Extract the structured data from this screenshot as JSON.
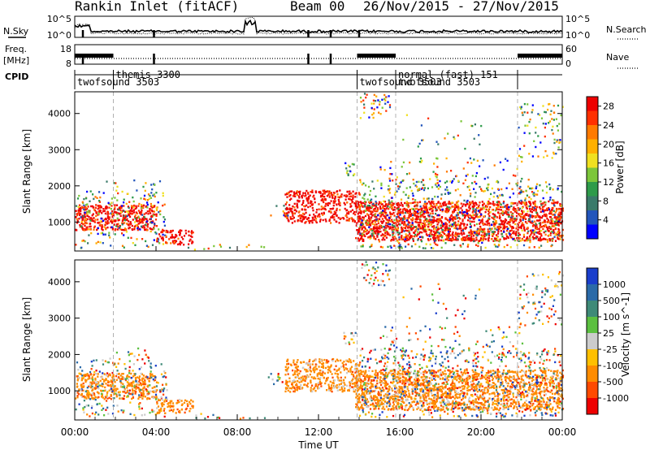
{
  "header": {
    "title": "Rankin Inlet (fitACF)",
    "beam": "Beam 00",
    "date_range": "26/Nov/2015 - 27/Nov/2015"
  },
  "summary_panel": {
    "nsky_label": "N.Sky",
    "nsky_ticks": [
      "10^5",
      "10^0"
    ],
    "nsearch_label": "N.Search",
    "nsearch_ticks": [
      "10^5",
      "10^0"
    ],
    "freq_label": "Freq.",
    "freq_unit": "[MHz]",
    "freq_ticks": [
      "18",
      "8"
    ],
    "nave_label": "Nave",
    "nave_ticks": [
      "60",
      "0"
    ],
    "cpid_label": "CPID"
  },
  "cpid_modes": [
    {
      "label": "twofsound 3503",
      "start_hour": 0.0,
      "end_hour": 1.9,
      "row": 2
    },
    {
      "label": "themis 3300",
      "start_hour": 1.9,
      "end_hour": 13.9,
      "row": 1
    },
    {
      "label": "twofsound 3503",
      "start_hour": 13.9,
      "end_hour": 15.8,
      "row": 2
    },
    {
      "label": "normal (fast) 151",
      "start_hour": 15.8,
      "end_hour": 21.8,
      "row": 1
    },
    {
      "label": "twofsound 3503",
      "start_hour": 15.8,
      "end_hour": 21.8,
      "row": 2
    }
  ],
  "chart_data": [
    {
      "type": "heatmap",
      "name": "power",
      "ylabel": "Slant Range [km]",
      "y_ticks": [
        1000,
        2000,
        3000,
        4000
      ],
      "ylim": [
        200,
        4600
      ],
      "xlim_hours": [
        0,
        24
      ],
      "colorbar_label": "Power [dB]",
      "colorbar_ticks": [
        4,
        8,
        12,
        16,
        20,
        24,
        28
      ],
      "colorbar_range": [
        0,
        30
      ],
      "colorbar_colors": [
        "#0000ff",
        "#2255bb",
        "#3a7a6a",
        "#2e9b4a",
        "#7cc63a",
        "#f0e020",
        "#ffb000",
        "#ff7a00",
        "#ff3000",
        "#ee0000"
      ]
    },
    {
      "type": "heatmap",
      "name": "velocity",
      "ylabel": "Slant Range [km]",
      "y_ticks": [
        1000,
        2000,
        3000,
        4000
      ],
      "ylim": [
        200,
        4600
      ],
      "xlim_hours": [
        0,
        24
      ],
      "xlabel": "Time UT",
      "x_tick_labels": [
        "00:00",
        "04:00",
        "08:00",
        "12:00",
        "16:00",
        "20:00",
        "00:00"
      ],
      "colorbar_label": "Velocity [m s^-1]",
      "colorbar_ticks": [
        1000,
        500,
        100,
        25,
        -25,
        -100,
        -500,
        -1000
      ],
      "colorbar_colors": [
        "#1a3ecc",
        "#2a6aa8",
        "#3f8a78",
        "#5cc040",
        "#cccccc",
        "#ffc000",
        "#ff8c00",
        "#ff4a00",
        "#ee0000"
      ]
    }
  ],
  "colors": {
    "power_main": "#ff2a00",
    "velocity_main": "#ff8a20",
    "velocity_positive": "#2e9b4a",
    "dashed_line": "#b0b0b0"
  }
}
